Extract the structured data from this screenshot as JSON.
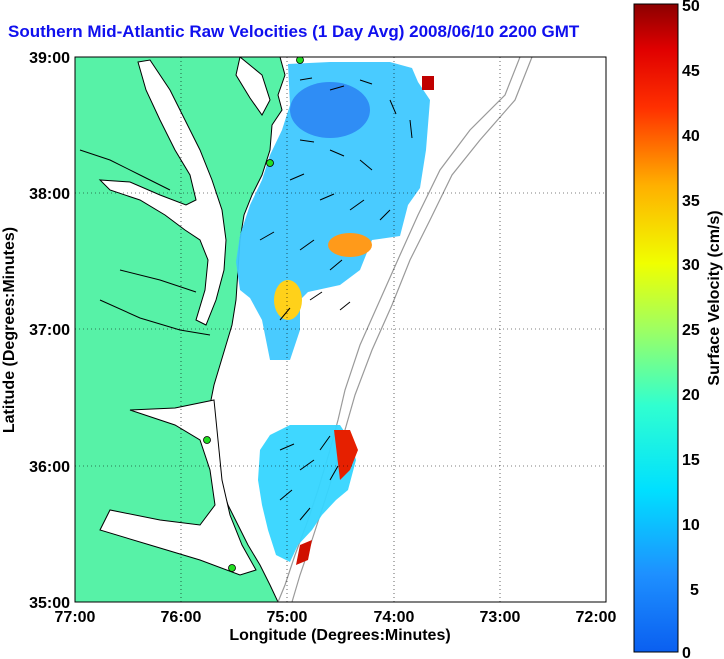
{
  "title": "Southern Mid-Atlantic Raw Velocities (1 Day Avg) 2008/06/10 2200 GMT",
  "axes": {
    "xlabel": "Longitude (Degrees:Minutes)",
    "ylabel": "Latitude (Degrees:Minutes)",
    "x_ticks": [
      "77:00",
      "76:00",
      "75:00",
      "74:00",
      "73:00",
      "72:00"
    ],
    "y_ticks": [
      "39:00",
      "38:00",
      "37:00",
      "36:00",
      "35:00"
    ]
  },
  "colorbar": {
    "label": "Surface Velocity (cm/s)",
    "ticks": [
      "50",
      "45",
      "40",
      "35",
      "30",
      "25",
      "20",
      "15",
      "10",
      "5",
      "0"
    ],
    "range": [
      0,
      50
    ]
  },
  "colors": {
    "land": "#57f2a7",
    "water": "#ffffff",
    "coast": "#000000",
    "bathymetry": "#9a9a9a",
    "title": "#1010ee",
    "stations": "#22dd22"
  }
}
